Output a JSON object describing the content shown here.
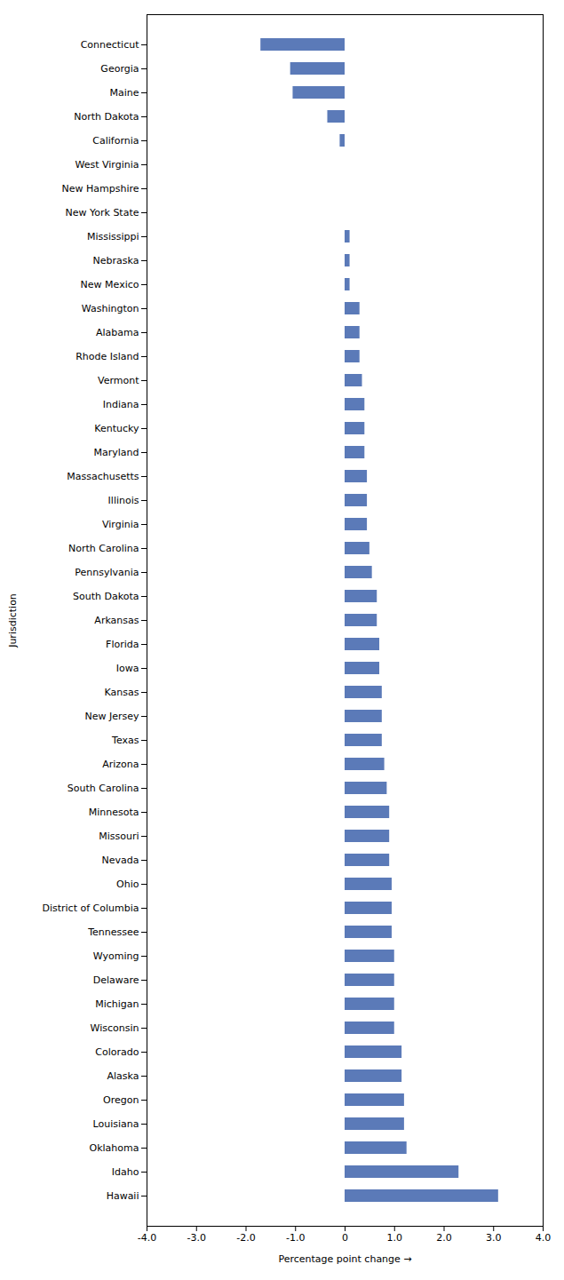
{
  "chart_data": {
    "type": "bar",
    "orientation": "horizontal",
    "categories": [
      "Connecticut",
      "Georgia",
      "Maine",
      "North Dakota",
      "California",
      "West Virginia",
      "New Hampshire",
      "New York State",
      "Mississippi",
      "Nebraska",
      "New Mexico",
      "Washington",
      "Alabama",
      "Rhode Island",
      "Vermont",
      "Indiana",
      "Kentucky",
      "Maryland",
      "Massachusetts",
      "Illinois",
      "Virginia",
      "North Carolina",
      "Pennsylvania",
      "South Dakota",
      "Arkansas",
      "Florida",
      "Iowa",
      "Kansas",
      "New Jersey",
      "Texas",
      "Arizona",
      "South Carolina",
      "Minnesota",
      "Missouri",
      "Nevada",
      "Ohio",
      "District of Columbia",
      "Tennessee",
      "Wyoming",
      "Delaware",
      "Michigan",
      "Wisconsin",
      "Colorado",
      "Alaska",
      "Oregon",
      "Louisiana",
      "Oklahoma",
      "Idaho",
      "Hawaii"
    ],
    "values": [
      -1.7,
      -1.1,
      -1.05,
      -0.35,
      -0.1,
      0.0,
      0.0,
      0.0,
      0.1,
      0.1,
      0.1,
      0.3,
      0.3,
      0.3,
      0.35,
      0.4,
      0.4,
      0.4,
      0.45,
      0.45,
      0.45,
      0.5,
      0.55,
      0.65,
      0.65,
      0.7,
      0.7,
      0.75,
      0.75,
      0.75,
      0.8,
      0.85,
      0.9,
      0.9,
      0.9,
      0.95,
      0.95,
      0.95,
      1.0,
      1.0,
      1.0,
      1.0,
      1.15,
      1.15,
      1.2,
      1.2,
      1.25,
      2.3,
      3.1
    ],
    "color": "#5b7ab8",
    "xlabel": "Percentage point change",
    "ylabel": "Jurisdiction",
    "xlim": [
      -4.0,
      4.0
    ],
    "xticks": [
      {
        "value": -4.0,
        "label": "-4.0"
      },
      {
        "value": -3.0,
        "label": "-3.0"
      },
      {
        "value": -2.0,
        "label": "-2.0"
      },
      {
        "value": -1.0,
        "label": "-1.0"
      },
      0,
      {
        "value": 1.0,
        "label": "1.0"
      },
      {
        "value": 2.0,
        "label": "2.0"
      },
      {
        "value": 3.0,
        "label": "3.0"
      },
      {
        "value": 4.0,
        "label": "4.0"
      }
    ],
    "grid": false
  }
}
